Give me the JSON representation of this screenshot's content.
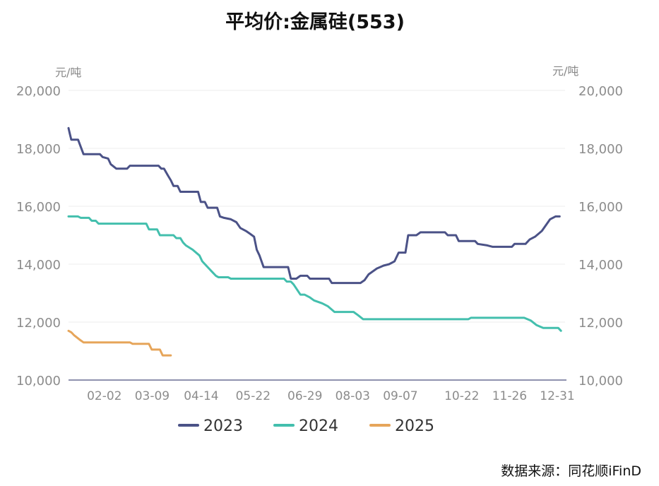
{
  "chart_data": {
    "type": "line",
    "title": "平均价:金属硅(553)",
    "y_unit_left": "元/吨",
    "y_unit_right": "元/吨",
    "ylim": [
      10000,
      20000
    ],
    "yticks": [
      10000,
      12000,
      14000,
      16000,
      18000,
      20000
    ],
    "ytick_labels": [
      "10,000",
      "12,000",
      "14,000",
      "16,000",
      "18,000",
      "20,000"
    ],
    "xlim": [
      1,
      365
    ],
    "xticks": [
      33,
      68,
      104,
      142,
      180,
      215,
      250,
      295,
      330,
      365
    ],
    "xtick_labels": [
      "02-02",
      "03-09",
      "04-14",
      "05-22",
      "06-29",
      "08-03",
      "09-07",
      "10-22",
      "11-26",
      "12-31"
    ],
    "grid": true,
    "legend_position": "bottom",
    "series": [
      {
        "name": "2023",
        "color": "#4b5287",
        "points": [
          [
            1,
            18700
          ],
          [
            2,
            18500
          ],
          [
            3,
            18300
          ],
          [
            8,
            18300
          ],
          [
            12,
            17800
          ],
          [
            24,
            17800
          ],
          [
            26,
            17700
          ],
          [
            30,
            17650
          ],
          [
            32,
            17450
          ],
          [
            36,
            17300
          ],
          [
            44,
            17300
          ],
          [
            46,
            17400
          ],
          [
            67,
            17400
          ],
          [
            69,
            17300
          ],
          [
            71,
            17300
          ],
          [
            74,
            17050
          ],
          [
            76,
            16900
          ],
          [
            78,
            16700
          ],
          [
            81,
            16700
          ],
          [
            83,
            16500
          ],
          [
            96,
            16500
          ],
          [
            98,
            16150
          ],
          [
            101,
            16150
          ],
          [
            103,
            15950
          ],
          [
            110,
            15950
          ],
          [
            112,
            15650
          ],
          [
            115,
            15600
          ],
          [
            120,
            15550
          ],
          [
            124,
            15450
          ],
          [
            127,
            15250
          ],
          [
            131,
            15150
          ],
          [
            134,
            15050
          ],
          [
            137,
            14950
          ],
          [
            139,
            14500
          ],
          [
            141,
            14300
          ],
          [
            144,
            13900
          ],
          [
            162,
            13900
          ],
          [
            164,
            13500
          ],
          [
            168,
            13500
          ],
          [
            171,
            13600
          ],
          [
            176,
            13600
          ],
          [
            178,
            13500
          ],
          [
            192,
            13500
          ],
          [
            194,
            13350
          ],
          [
            215,
            13350
          ],
          [
            218,
            13450
          ],
          [
            221,
            13650
          ],
          [
            227,
            13850
          ],
          [
            232,
            13950
          ],
          [
            236,
            14000
          ],
          [
            240,
            14100
          ],
          [
            243,
            14400
          ],
          [
            248,
            14400
          ],
          [
            250,
            15000
          ],
          [
            256,
            15000
          ],
          [
            259,
            15100
          ],
          [
            277,
            15100
          ],
          [
            279,
            15000
          ],
          [
            285,
            15000
          ],
          [
            287,
            14800
          ],
          [
            299,
            14800
          ],
          [
            301,
            14700
          ],
          [
            308,
            14650
          ],
          [
            312,
            14600
          ],
          [
            326,
            14600
          ],
          [
            328,
            14700
          ],
          [
            336,
            14700
          ],
          [
            339,
            14850
          ],
          [
            343,
            14950
          ],
          [
            348,
            15150
          ],
          [
            351,
            15350
          ],
          [
            354,
            15550
          ],
          [
            358,
            15650
          ],
          [
            361,
            15650
          ]
        ]
      },
      {
        "name": "2024",
        "color": "#43bfad",
        "points": [
          [
            1,
            15650
          ],
          [
            8,
            15650
          ],
          [
            10,
            15600
          ],
          [
            16,
            15600
          ],
          [
            18,
            15500
          ],
          [
            21,
            15500
          ],
          [
            23,
            15400
          ],
          [
            58,
            15400
          ],
          [
            60,
            15200
          ],
          [
            66,
            15200
          ],
          [
            68,
            15000
          ],
          [
            78,
            15000
          ],
          [
            80,
            14900
          ],
          [
            83,
            14900
          ],
          [
            85,
            14750
          ],
          [
            87,
            14650
          ],
          [
            92,
            14500
          ],
          [
            97,
            14300
          ],
          [
            99,
            14100
          ],
          [
            103,
            13900
          ],
          [
            106,
            13750
          ],
          [
            109,
            13600
          ],
          [
            111,
            13550
          ],
          [
            118,
            13550
          ],
          [
            120,
            13500
          ],
          [
            159,
            13500
          ],
          [
            161,
            13400
          ],
          [
            164,
            13400
          ],
          [
            166,
            13300
          ],
          [
            171,
            12950
          ],
          [
            174,
            12950
          ],
          [
            178,
            12850
          ],
          [
            181,
            12750
          ],
          [
            187,
            12650
          ],
          [
            191,
            12550
          ],
          [
            196,
            12350
          ],
          [
            210,
            12350
          ],
          [
            213,
            12250
          ],
          [
            217,
            12100
          ],
          [
            294,
            12100
          ],
          [
            296,
            12150
          ],
          [
            335,
            12150
          ],
          [
            340,
            12050
          ],
          [
            344,
            11900
          ],
          [
            349,
            11800
          ],
          [
            360,
            11800
          ],
          [
            362,
            11700
          ]
        ]
      },
      {
        "name": "2025",
        "color": "#e6a55a",
        "points": [
          [
            1,
            11700
          ],
          [
            3,
            11650
          ],
          [
            5,
            11550
          ],
          [
            9,
            11400
          ],
          [
            12,
            11300
          ],
          [
            46,
            11300
          ],
          [
            48,
            11250
          ],
          [
            52,
            11250
          ],
          [
            60,
            11250
          ],
          [
            62,
            11050
          ],
          [
            68,
            11050
          ],
          [
            70,
            10850
          ],
          [
            76,
            10850
          ]
        ]
      }
    ]
  },
  "source": "数据来源：同花顺iFinD"
}
